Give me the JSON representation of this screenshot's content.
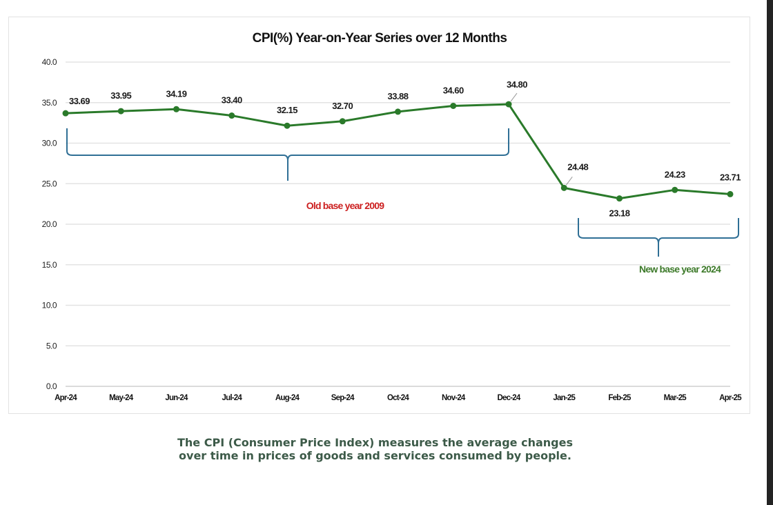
{
  "chart_data": {
    "type": "line",
    "title": "CPI(%) Year-on-Year Series over 12 Months",
    "categories": [
      "Apr-24",
      "May-24",
      "Jun-24",
      "Jul-24",
      "Aug-24",
      "Sep-24",
      "Oct-24",
      "Nov-24",
      "Dec-24",
      "Jan-25",
      "Feb-25",
      "Mar-25",
      "Apr-25"
    ],
    "series": [
      {
        "values": [
          33.69,
          33.95,
          34.19,
          33.4,
          32.15,
          32.7,
          33.88,
          34.6,
          34.8,
          24.48,
          23.18,
          24.23,
          23.71
        ],
        "color": "#2a7a2a"
      }
    ],
    "data_labels": [
      "33.69",
      "33.95",
      "34.19",
      "33.40",
      "32.15",
      "32.70",
      "33.88",
      "34.60",
      "34.80",
      "24.48",
      "23.18",
      "24.23",
      "23.71"
    ],
    "ylim": [
      0,
      40
    ],
    "yticks": [
      "0.0",
      "5.0",
      "10.0",
      "15.0",
      "20.0",
      "25.0",
      "30.0",
      "35.0",
      "40.0"
    ],
    "grid": true,
    "annotations": [
      {
        "text": "Old base year 2009",
        "color": "#cc1f1f",
        "span": [
          "Apr-24",
          "Dec-24"
        ]
      },
      {
        "text": "New base year 2024",
        "color": "#3d7a2a",
        "span": [
          "Jan-25",
          "Apr-25"
        ]
      }
    ],
    "bracket_color": "#2f6f95"
  },
  "caption": {
    "line1": "The CPI (Consumer Price Index) measures the average changes",
    "line2": "over time in prices of goods and services consumed by people."
  }
}
